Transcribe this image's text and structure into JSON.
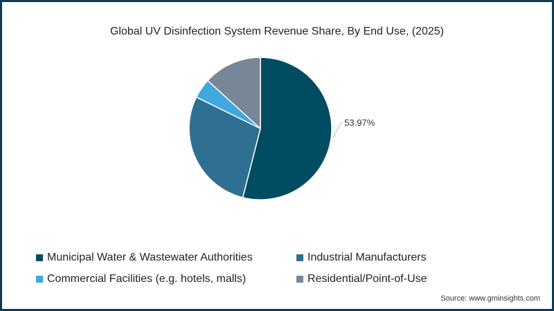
{
  "chart_data": {
    "type": "pie",
    "title": "Global UV Disinfection System Revenue Share, By End Use, (2025)",
    "slices": [
      {
        "name": "Municipal Water & Wastewater Authorities",
        "value": 53.97,
        "color": "#004c63",
        "label": "53.97%"
      },
      {
        "name": "Industrial Manufacturers",
        "value": 28.3,
        "color": "#2f6f92"
      },
      {
        "name": "Commercial Facilities (e.g. hotels, malls)",
        "value": 4.5,
        "color": "#41a8df"
      },
      {
        "name": "Residential/Point-of-Use",
        "value": 13.23,
        "color": "#788797"
      }
    ],
    "start_angle": "top",
    "direction": "clockwise",
    "legend_position": "bottom"
  },
  "source": "Source: www.gminsights.com"
}
